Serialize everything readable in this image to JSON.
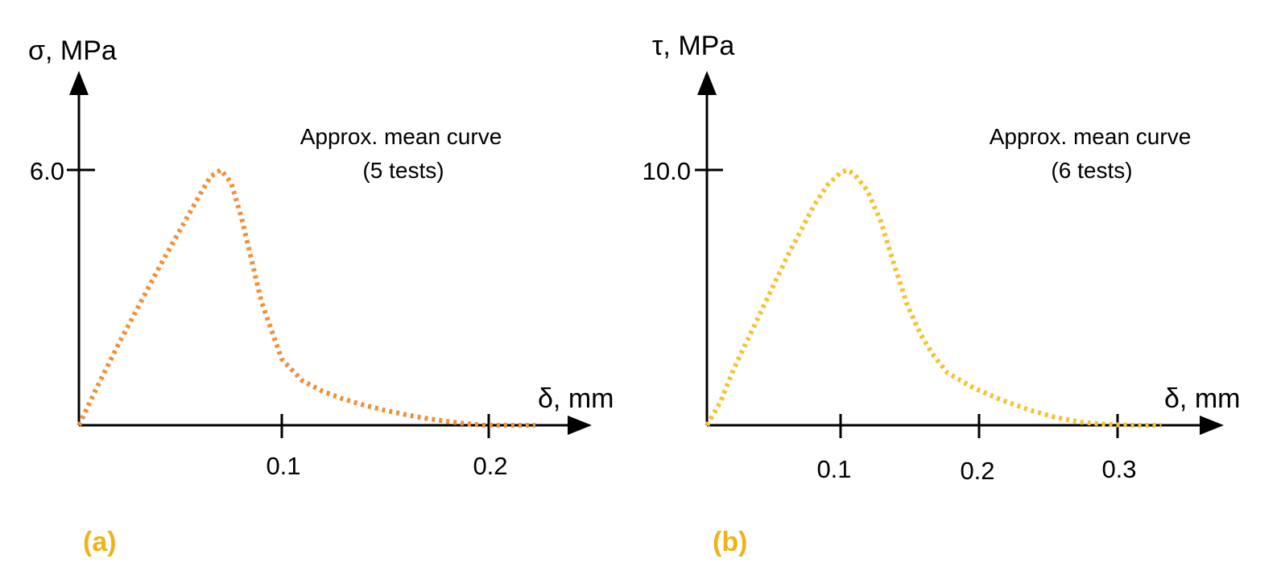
{
  "colors": {
    "axis": "#000000",
    "curve_a": "#f0903a",
    "curve_b": "#f5c232",
    "panel_label": "#f0b21c"
  },
  "chart_data": [
    {
      "type": "line",
      "panel_label": "(a)",
      "ylabel": "σ, MPa",
      "xlabel": "δ, mm",
      "x_ticks": [
        0.1,
        0.2
      ],
      "x_tick_labels": [
        "0.1",
        "0.2"
      ],
      "y_ticks": [
        6.0
      ],
      "y_tick_labels": [
        "6.0"
      ],
      "xlim": [
        0,
        0.23
      ],
      "ylim": [
        0,
        6.0
      ],
      "annotation_line1": "Approx.  mean curve",
      "annotation_line2": "(5 tests)",
      "line_style": "dotted",
      "series": [
        {
          "x": [
            0,
            0.01,
            0.02,
            0.03,
            0.04,
            0.05,
            0.06,
            0.065,
            0.07,
            0.075,
            0.08,
            0.085,
            0.09,
            0.1,
            0.11,
            0.12,
            0.13,
            0.14,
            0.15,
            0.16,
            0.17,
            0.18,
            0.19,
            0.2,
            0.21,
            0.225
          ],
          "y": [
            0,
            1.0,
            1.95,
            2.85,
            3.75,
            4.6,
            5.45,
            5.85,
            6.0,
            5.7,
            4.9,
            3.9,
            2.9,
            1.55,
            1.05,
            0.8,
            0.62,
            0.48,
            0.36,
            0.26,
            0.17,
            0.1,
            0.04,
            0.0,
            0.0,
            0.0
          ]
        }
      ]
    },
    {
      "type": "line",
      "panel_label": "(b)",
      "ylabel": "τ, MPa",
      "xlabel": "δ, mm",
      "x_ticks": [
        0.1,
        0.2,
        0.3
      ],
      "x_tick_labels": [
        "0.1",
        "0.2",
        "0.3"
      ],
      "y_ticks": [
        10.0
      ],
      "y_tick_labels": [
        "10.0"
      ],
      "xlim": [
        0,
        0.37
      ],
      "ylim": [
        0,
        10.0
      ],
      "annotation_line1": "Approx.  mean curve",
      "annotation_line2": "(6 tests)",
      "line_style": "dotted",
      "series": [
        {
          "x": [
            0,
            0.01,
            0.02,
            0.03,
            0.04,
            0.05,
            0.06,
            0.07,
            0.08,
            0.09,
            0.1,
            0.105,
            0.11,
            0.12,
            0.13,
            0.14,
            0.15,
            0.16,
            0.17,
            0.18,
            0.2,
            0.22,
            0.24,
            0.26,
            0.28,
            0.3,
            0.32,
            0.34
          ],
          "y": [
            0,
            0.9,
            2.2,
            3.3,
            4.4,
            5.5,
            6.6,
            7.6,
            8.6,
            9.4,
            9.9,
            10.0,
            9.85,
            9.2,
            8.0,
            6.3,
            4.7,
            3.55,
            2.7,
            2.05,
            1.45,
            1.0,
            0.62,
            0.32,
            0.12,
            0.03,
            0.0,
            0.0
          ]
        }
      ]
    }
  ]
}
